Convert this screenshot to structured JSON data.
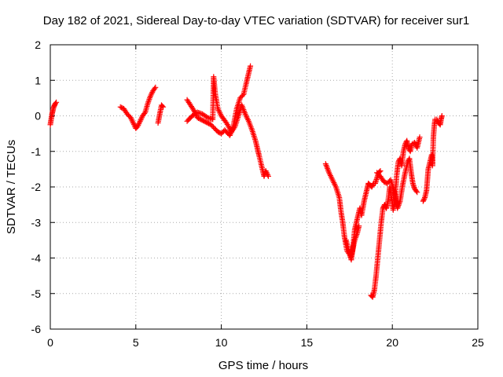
{
  "chart_data": {
    "type": "scatter",
    "title": "Day 182 of 2021, Sidereal Day-to-day VTEC variation (SDTVAR) for receiver sur1",
    "xlabel": "GPS time / hours",
    "ylabel": "SDTVAR / TECUs",
    "xlim": [
      0,
      25
    ],
    "ylim": [
      -6,
      2
    ],
    "xticks": [
      0,
      5,
      10,
      15,
      20,
      25
    ],
    "yticks": [
      -6,
      -5,
      -4,
      -3,
      -2,
      -1,
      0,
      1,
      2
    ],
    "grid": true,
    "marker": "+",
    "color": "#ff0000",
    "series": [
      {
        "name": "sur1",
        "segments": [
          [
            [
              0.0,
              -0.25
            ],
            [
              0.05,
              -0.1
            ],
            [
              0.1,
              0.05
            ],
            [
              0.15,
              0.15
            ],
            [
              0.2,
              0.25
            ],
            [
              0.25,
              0.3
            ],
            [
              0.3,
              0.35
            ],
            [
              0.35,
              0.38
            ]
          ],
          [
            [
              4.1,
              0.25
            ],
            [
              4.3,
              0.2
            ],
            [
              4.5,
              0.05
            ],
            [
              4.7,
              -0.05
            ],
            [
              4.85,
              -0.2
            ],
            [
              5.0,
              -0.35
            ],
            [
              5.1,
              -0.3
            ],
            [
              5.25,
              -0.15
            ],
            [
              5.4,
              0.0
            ],
            [
              5.55,
              0.1
            ],
            [
              5.7,
              0.35
            ],
            [
              5.85,
              0.55
            ],
            [
              6.0,
              0.7
            ],
            [
              6.15,
              0.8
            ]
          ],
          [
            [
              6.3,
              -0.2
            ],
            [
              6.4,
              0.05
            ],
            [
              6.5,
              0.3
            ],
            [
              6.6,
              0.25
            ]
          ],
          [
            [
              8.0,
              0.45
            ],
            [
              8.2,
              0.3
            ],
            [
              8.4,
              0.15
            ],
            [
              8.6,
              -0.05
            ],
            [
              8.8,
              -0.1
            ],
            [
              9.0,
              -0.15
            ],
            [
              9.2,
              -0.2
            ],
            [
              9.4,
              -0.25
            ],
            [
              9.6,
              -0.35
            ],
            [
              9.8,
              -0.45
            ],
            [
              10.0,
              -0.5
            ],
            [
              10.2,
              -0.4
            ],
            [
              10.5,
              -0.55
            ],
            [
              10.7,
              -0.3
            ],
            [
              10.9,
              0.2
            ],
            [
              11.1,
              0.5
            ],
            [
              11.3,
              0.6
            ],
            [
              11.5,
              1.0
            ],
            [
              11.6,
              1.2
            ],
            [
              11.7,
              1.4
            ]
          ],
          [
            [
              8.0,
              -0.15
            ],
            [
              8.3,
              0.0
            ],
            [
              8.6,
              0.1
            ],
            [
              8.9,
              0.05
            ],
            [
              9.2,
              -0.05
            ],
            [
              9.5,
              -0.1
            ],
            [
              9.55,
              1.1
            ],
            [
              9.65,
              0.6
            ],
            [
              9.8,
              0.2
            ],
            [
              10.0,
              0.0
            ],
            [
              10.3,
              -0.2
            ],
            [
              10.6,
              -0.45
            ],
            [
              10.8,
              -0.3
            ],
            [
              11.0,
              0.0
            ],
            [
              11.2,
              0.3
            ],
            [
              11.4,
              0.05
            ],
            [
              11.6,
              -0.15
            ],
            [
              11.8,
              -0.4
            ],
            [
              12.0,
              -0.7
            ],
            [
              12.1,
              -0.9
            ],
            [
              12.2,
              -1.1
            ],
            [
              12.4,
              -1.5
            ],
            [
              12.5,
              -1.7
            ],
            [
              12.6,
              -1.55
            ],
            [
              12.75,
              -1.7
            ]
          ],
          [
            [
              16.1,
              -1.35
            ],
            [
              16.3,
              -1.6
            ],
            [
              16.5,
              -1.8
            ],
            [
              16.7,
              -2.0
            ],
            [
              16.9,
              -2.3
            ],
            [
              17.0,
              -2.7
            ],
            [
              17.1,
              -3.0
            ],
            [
              17.2,
              -3.4
            ],
            [
              17.35,
              -3.8
            ],
            [
              17.5,
              -3.9
            ],
            [
              17.6,
              -4.05
            ],
            [
              17.7,
              -3.7
            ],
            [
              17.8,
              -3.2
            ],
            [
              17.9,
              -3.0
            ],
            [
              18.0,
              -2.8
            ],
            [
              18.1,
              -2.6
            ],
            [
              18.2,
              -2.8
            ],
            [
              18.35,
              -2.4
            ],
            [
              18.5,
              -2.1
            ],
            [
              18.6,
              -1.9
            ],
            [
              18.7,
              -1.95
            ],
            [
              18.8,
              -2.0
            ],
            [
              18.9,
              -1.9
            ],
            [
              19.0,
              -1.9
            ],
            [
              19.1,
              -1.75
            ],
            [
              19.2,
              -1.6
            ],
            [
              19.3,
              -1.55
            ]
          ],
          [
            [
              17.3,
              -3.5
            ],
            [
              17.45,
              -3.8
            ],
            [
              17.6,
              -3.95
            ],
            [
              17.8,
              -3.5
            ],
            [
              17.95,
              -3.3
            ],
            [
              18.05,
              -3.1
            ]
          ],
          [
            [
              18.75,
              -5.05
            ],
            [
              18.85,
              -5.1
            ],
            [
              18.95,
              -4.9
            ],
            [
              19.05,
              -4.5
            ],
            [
              19.15,
              -4.0
            ],
            [
              19.25,
              -3.5
            ],
            [
              19.35,
              -3.0
            ],
            [
              19.45,
              -2.6
            ],
            [
              19.55,
              -2.5
            ],
            [
              19.65,
              -2.6
            ],
            [
              19.75,
              -2.4
            ],
            [
              19.85,
              -2.0
            ],
            [
              19.95,
              -2.3
            ],
            [
              20.05,
              -2.65
            ],
            [
              20.15,
              -2.4
            ],
            [
              20.25,
              -1.7
            ],
            [
              20.35,
              -1.3
            ],
            [
              20.45,
              -1.2
            ],
            [
              20.55,
              -1.4
            ],
            [
              20.65,
              -1.0
            ],
            [
              20.75,
              -0.8
            ],
            [
              20.85,
              -0.7
            ],
            [
              20.95,
              -0.9
            ],
            [
              21.05,
              -1.0
            ],
            [
              21.15,
              -0.8
            ],
            [
              21.3,
              -0.75
            ],
            [
              21.45,
              -0.9
            ],
            [
              21.6,
              -0.6
            ]
          ],
          [
            [
              19.1,
              -1.6
            ],
            [
              19.3,
              -1.7
            ],
            [
              19.5,
              -1.85
            ],
            [
              19.7,
              -1.9
            ],
            [
              19.9,
              -1.8
            ],
            [
              20.1,
              -2.1
            ],
            [
              20.3,
              -2.6
            ],
            [
              20.45,
              -2.4
            ],
            [
              20.6,
              -1.95
            ],
            [
              20.75,
              -1.6
            ],
            [
              20.9,
              -1.3
            ],
            [
              21.0,
              -1.2
            ],
            [
              21.1,
              -1.6
            ],
            [
              21.2,
              -1.9
            ],
            [
              21.3,
              -2.05
            ],
            [
              21.45,
              -2.15
            ]
          ],
          [
            [
              21.8,
              -2.4
            ],
            [
              21.9,
              -2.3
            ],
            [
              22.0,
              -2.1
            ],
            [
              22.05,
              -1.8
            ],
            [
              22.1,
              -1.5
            ],
            [
              22.2,
              -1.3
            ],
            [
              22.3,
              -1.1
            ],
            [
              22.35,
              -1.4
            ],
            [
              22.4,
              -0.6
            ],
            [
              22.45,
              -0.3
            ],
            [
              22.5,
              -0.1
            ],
            [
              22.6,
              -0.1
            ],
            [
              22.7,
              -0.2
            ],
            [
              22.8,
              -0.25
            ],
            [
              22.85,
              -0.1
            ],
            [
              22.9,
              0.0
            ]
          ]
        ]
      }
    ]
  }
}
